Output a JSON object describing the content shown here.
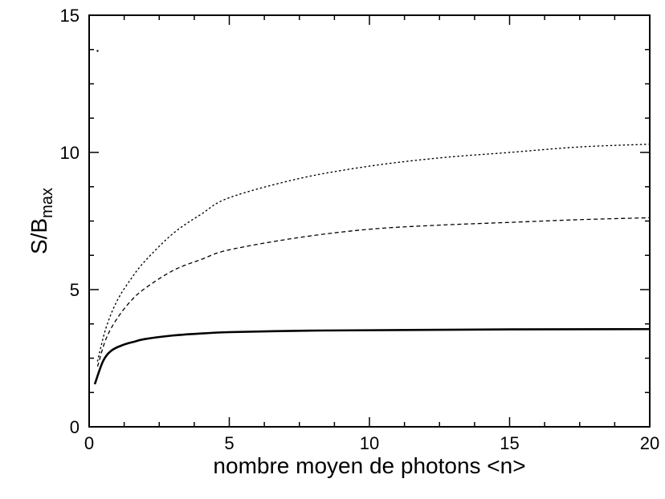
{
  "chart_data": {
    "type": "line",
    "xlabel": "nombre moyen de photons <n>",
    "ylabel": {
      "main": "S/B",
      "subscript": "max"
    },
    "xlim": [
      0,
      20
    ],
    "ylim": [
      0,
      15
    ],
    "xticks": [
      0,
      5,
      10,
      15,
      20
    ],
    "yticks": [
      0,
      5,
      10,
      15
    ],
    "xtick_labels": [
      "0",
      "5",
      "10",
      "15",
      "20"
    ],
    "ytick_labels": [
      "0",
      "5",
      "10",
      "15"
    ],
    "minor_tick_step": {
      "x": 1.25,
      "y": 1.25
    },
    "grid": false,
    "legend": "none",
    "series": [
      {
        "style": "solid",
        "x": [
          0.2,
          0.5,
          0.8,
          1.2,
          1.6,
          2,
          3,
          4,
          5,
          7.5,
          10,
          15,
          20
        ],
        "y": [
          1.55,
          2.4,
          2.78,
          2.98,
          3.1,
          3.2,
          3.33,
          3.4,
          3.45,
          3.5,
          3.52,
          3.55,
          3.56
        ]
      },
      {
        "style": "dashed",
        "x": [
          0.3,
          0.6,
          1,
          1.5,
          2,
          3,
          4,
          5,
          7.5,
          10,
          12.5,
          15,
          17.5,
          20
        ],
        "y": [
          2.2,
          3.2,
          3.95,
          4.6,
          5.05,
          5.7,
          6.1,
          6.45,
          6.9,
          7.2,
          7.35,
          7.45,
          7.55,
          7.62
        ]
      },
      {
        "style": "dotted",
        "x": [
          0.3,
          0.6,
          1,
          1.5,
          2,
          3,
          4,
          5,
          7.5,
          10,
          12.5,
          15,
          17.5,
          20
        ],
        "y": [
          2.4,
          3.6,
          4.6,
          5.4,
          6.05,
          7.05,
          7.75,
          8.35,
          9.05,
          9.5,
          9.8,
          10.0,
          10.2,
          10.3
        ]
      },
      {
        "style": "point",
        "x": [
          0.3
        ],
        "y": [
          13.7
        ]
      }
    ]
  }
}
